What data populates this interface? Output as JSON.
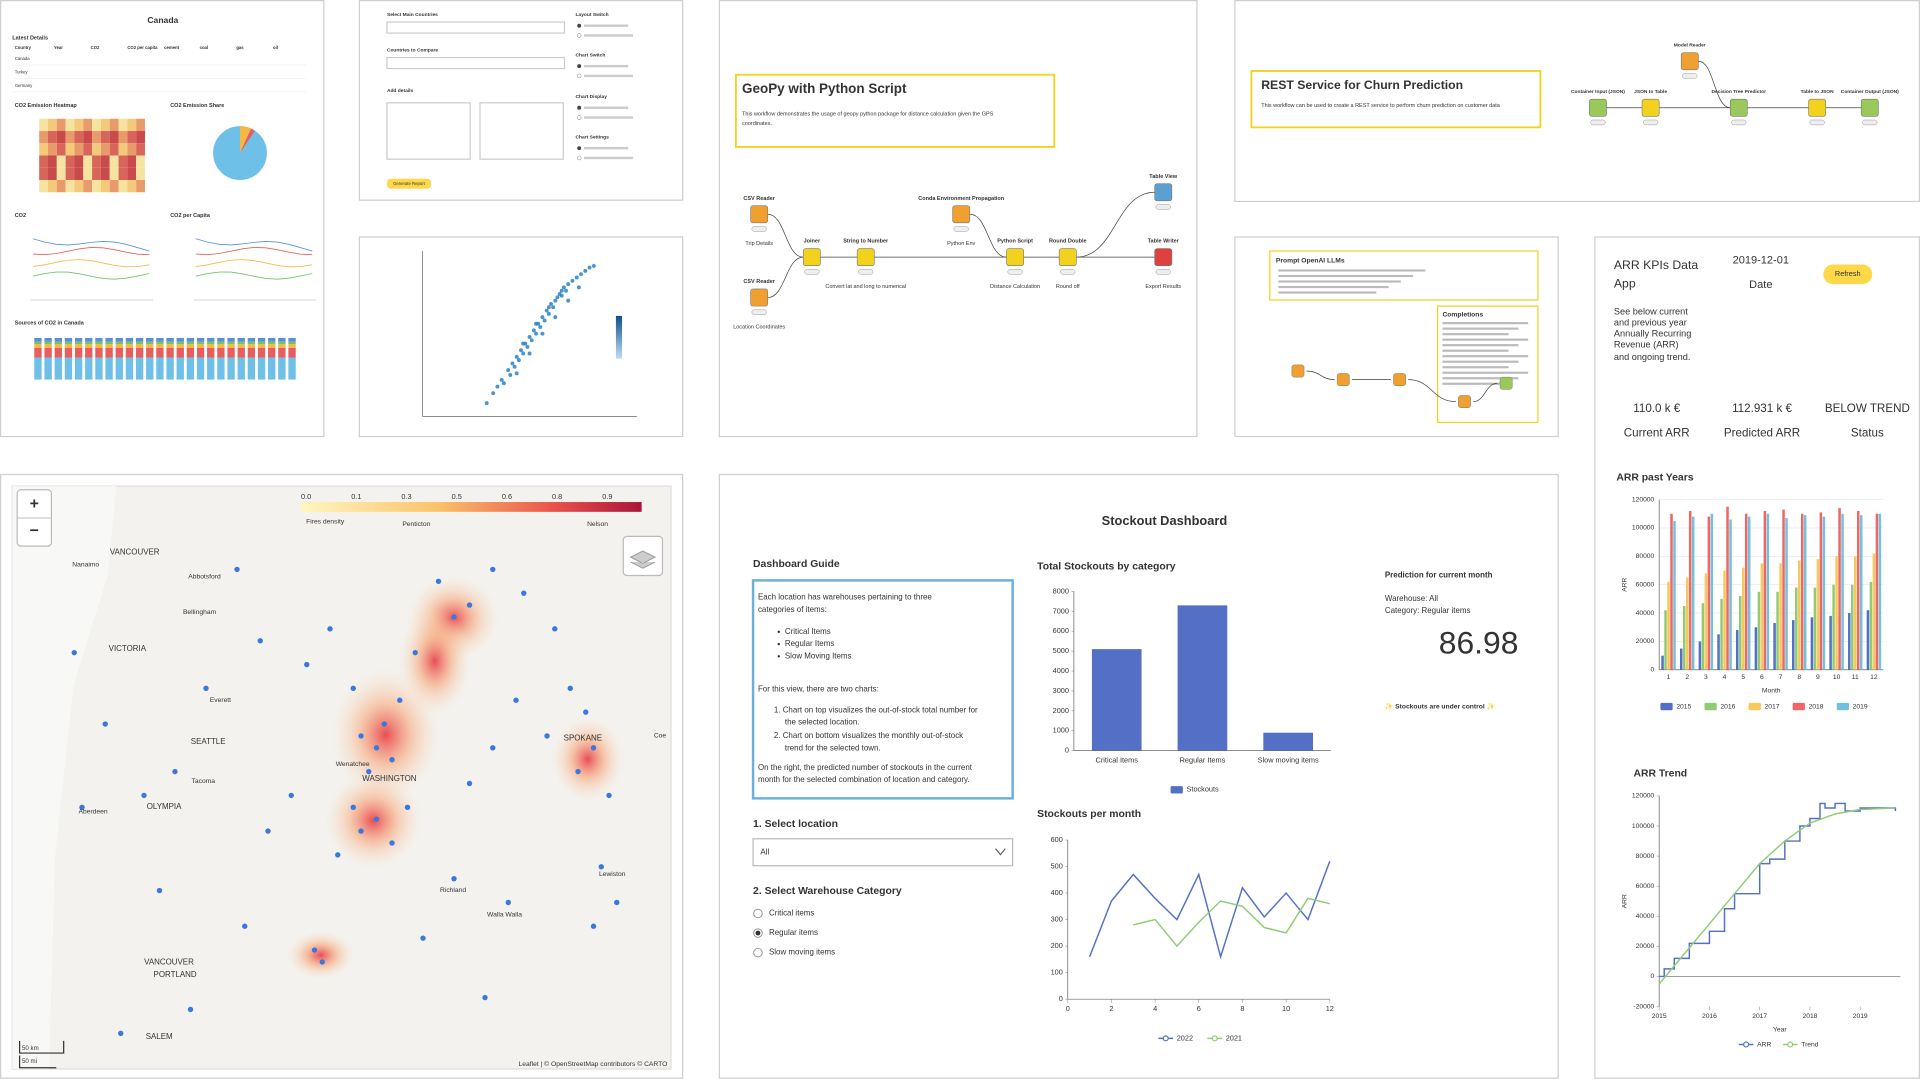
{
  "canada": {
    "title": "Canada",
    "latest_details": "Latest Details",
    "table_headers": [
      "Country",
      "Year",
      "CO2",
      "CO2 per capita",
      "cement",
      "coal",
      "gas",
      "oil"
    ],
    "table_countries": [
      "Canada",
      "Turkey",
      "Germany"
    ],
    "sections": [
      "CO2 Emission Heatmap",
      "CO2 Emission Share",
      "CO2",
      "CO2 per Capita",
      "Sources of CO2 in Canada"
    ]
  },
  "form": {
    "fields": [
      "Select Main Countries",
      "Countries to Compare",
      "Add details"
    ],
    "switches": [
      "Layout Switch",
      "Chart Switch",
      "Chart Display",
      "Chart Settings"
    ],
    "button": "Generate Report"
  },
  "scatter": {
    "type": "scatter",
    "xlim": [
      0,
      100
    ],
    "ylim": [
      0,
      100
    ],
    "series": [
      {
        "color": "#2b83c6",
        "x": [
          30,
          33,
          35,
          37,
          38,
          40,
          41,
          42,
          43,
          44,
          45,
          46,
          47,
          48,
          49,
          50,
          51,
          52,
          53,
          54,
          55,
          56,
          57,
          58,
          59,
          60,
          61,
          62,
          63,
          64,
          65,
          66,
          67,
          68,
          70,
          72,
          74,
          76,
          78,
          80,
          44,
          50,
          56,
          62,
          68,
          73,
          47,
          53,
          59,
          65
        ],
        "values": [
          8,
          14,
          18,
          22,
          20,
          28,
          25,
          32,
          30,
          36,
          34,
          40,
          38,
          44,
          42,
          48,
          46,
          52,
          50,
          56,
          54,
          60,
          58,
          64,
          62,
          68,
          66,
          70,
          72,
          74,
          73,
          78,
          76,
          80,
          82,
          84,
          86,
          88,
          90,
          91,
          26,
          38,
          50,
          60,
          70,
          78,
          44,
          56,
          66,
          76
        ]
      }
    ]
  },
  "geopy": {
    "title": "GeoPy with Python Script",
    "description": [
      "This workflow demonstrates the usage of geopy python package for distance calculation given the GPS",
      "coordinates."
    ],
    "nodes": [
      {
        "name": "CSV Reader",
        "caption": "Trip Details"
      },
      {
        "name": "CSV Reader",
        "caption": "Location Coordinates"
      },
      {
        "name": "Joiner"
      },
      {
        "name": "String to Number",
        "caption": "Convert lat and long to numerical"
      },
      {
        "name": "Conda Environment Propagation",
        "caption": "Python Env"
      },
      {
        "name": "Python Script",
        "caption": "Distance Calculation"
      },
      {
        "name": "Round Double",
        "caption": "Round off"
      },
      {
        "name": "Table View"
      },
      {
        "name": "Table Writer",
        "caption": "Export Results"
      }
    ]
  },
  "rest": {
    "title": "REST Service for Churn Prediction",
    "description": "This workflow can be used to create a REST service to perform churn prediction on customer data",
    "nodes": [
      {
        "name": "Container Input (JSON)"
      },
      {
        "name": "JSON to Table"
      },
      {
        "name": "Model Reader"
      },
      {
        "name": "Decision Tree Predictor"
      },
      {
        "name": "Table to JSON"
      },
      {
        "name": "Container Output (JSON)"
      }
    ]
  },
  "openai": {
    "title": "Prompt OpenAI LLMs",
    "completions": "Completions"
  },
  "arr": {
    "title": [
      "ARR KPIs Data",
      "App"
    ],
    "date_value": "2019-12-01",
    "date_label": "Date",
    "button": "Refresh",
    "description": [
      "See below current",
      "and previous year",
      "Annually Recurring",
      "Revenue (ARR)",
      "and ongoing trend."
    ],
    "kpis": [
      {
        "value": "110.0 k €",
        "label": "Current ARR"
      },
      {
        "value": "112.931 k €",
        "label": "Predicted ARR"
      },
      {
        "value": "BELOW TREND",
        "label": "Status"
      }
    ],
    "bar_chart": {
      "type": "bar",
      "title": "ARR past Years",
      "xlabel": "Month",
      "ylabel": "ARR",
      "grid": true,
      "categories": [
        1,
        2,
        3,
        4,
        5,
        6,
        7,
        8,
        9,
        10,
        11,
        12
      ],
      "ylim": [
        0,
        120000
      ],
      "yticks": [
        0,
        20000,
        40000,
        60000,
        80000,
        100000,
        120000
      ],
      "series": [
        {
          "name": "2015",
          "color": "#5470c6",
          "values": [
            10000,
            15000,
            20000,
            25000,
            28000,
            30000,
            33000,
            35000,
            37000,
            38000,
            40000,
            42000
          ]
        },
        {
          "name": "2016",
          "color": "#91cc75",
          "values": [
            42000,
            45000,
            47000,
            50000,
            52000,
            55000,
            55000,
            58000,
            58000,
            60000,
            60000,
            62000
          ]
        },
        {
          "name": "2017",
          "color": "#fac858",
          "values": [
            62000,
            65000,
            68000,
            70000,
            72000,
            75000,
            75000,
            77000,
            78000,
            80000,
            80000,
            82000
          ]
        },
        {
          "name": "2018",
          "color": "#ee6666",
          "values": [
            110000,
            112000,
            108000,
            115000,
            110000,
            112000,
            113000,
            110000,
            111000,
            114000,
            112000,
            110000
          ]
        },
        {
          "name": "2019",
          "color": "#73c0de",
          "values": [
            105000,
            108000,
            110000,
            106000,
            108000,
            110000,
            107000,
            109000,
            108000,
            110000,
            109000,
            110000
          ]
        }
      ]
    },
    "trend_chart": {
      "type": "line",
      "title": "ARR Trend",
      "xlabel": "Year",
      "ylabel": "ARR",
      "grid": false,
      "xlim": [
        2015,
        2019.8
      ],
      "xticks": [
        2015,
        2016,
        2017,
        2018,
        2019
      ],
      "ylim": [
        -20000,
        120000
      ],
      "yticks": [
        -20000,
        0,
        20000,
        40000,
        60000,
        80000,
        100000,
        120000
      ],
      "series": [
        {
          "name": "ARR",
          "color": "#5470c6",
          "step": true,
          "x": [
            2015.0,
            2015.1,
            2015.3,
            2015.6,
            2016.0,
            2016.3,
            2016.5,
            2016.8,
            2017.0,
            2017.2,
            2017.5,
            2017.8,
            2018.0,
            2018.2,
            2018.3,
            2018.5,
            2018.7,
            2019.0,
            2019.3,
            2019.7
          ],
          "values": [
            0,
            5000,
            12000,
            22000,
            30000,
            45000,
            55000,
            55000,
            75000,
            78000,
            90000,
            100000,
            105000,
            115000,
            112000,
            115000,
            110000,
            112000,
            112000,
            110000
          ]
        },
        {
          "name": "Trend",
          "color": "#91cc75",
          "x": [
            2015.0,
            2015.5,
            2016.0,
            2016.5,
            2017.0,
            2017.5,
            2018.0,
            2018.5,
            2019.0,
            2019.7
          ],
          "values": [
            -5000,
            15000,
            35000,
            55000,
            75000,
            90000,
            102000,
            108000,
            111000,
            112000
          ]
        }
      ]
    }
  },
  "map": {
    "zoom_in": "+",
    "zoom_out": "−",
    "legend_title": "Fires density",
    "legend_labels": [
      "0.0",
      "0.1",
      "0.3",
      "0.5",
      "0.6",
      "0.8",
      "0.9"
    ],
    "cities": [
      "VANCOUVER",
      "Nanaimo",
      "Abbotsford",
      "Penticton",
      "Nelson",
      "VICTORIA",
      "Bellingham",
      "Everett",
      "SEATTLE",
      "Tacoma",
      "OLYMPIA",
      "Aberdeen",
      "WASHINGTON",
      "Wenatchee",
      "SPOKANE",
      "Coe",
      "Richland",
      "Walla Walla",
      "Lewiston",
      "VANCOUVER",
      "PORTLAND",
      "SALEM"
    ],
    "scale": [
      "50 km",
      "50 mi"
    ],
    "attribution": "Leaflet | © OpenStreetMap contributors © CARTO",
    "xlim": [
      -124.8,
      -116.3
    ],
    "ylim": [
      44.7,
      49.6
    ],
    "point_color": "#3a78e0",
    "points": {
      "lon": [
        -120.1,
        -120.3,
        -119.9,
        -120.2,
        -120.0,
        -119.8,
        -120.4,
        -119.6,
        -119.1,
        -118.9,
        -119.3,
        -118.6,
        -118.2,
        -117.8,
        -117.4,
        -117.3,
        -117.5,
        -117.1,
        -117.6,
        -117.9,
        -118.3,
        -120.1,
        -120.3,
        -119.9,
        -120.4,
        -120.6,
        -119.7,
        -121.2,
        -121.5,
        -121.6,
        -121.9,
        -122.3,
        -122.7,
        -123.1,
        -123.6,
        -123.9,
        -124.0,
        -122.9,
        -121.8,
        -120.9,
        -120.8,
        -119.1,
        -118.4,
        -117.2,
        -117.0,
        -117.3,
        -118.7,
        -122.5,
        -123.4,
        -119.5,
        -121.0,
        -120.7,
        -118.9,
        -118.6
      ],
      "lat": [
        47.4,
        47.5,
        47.3,
        47.2,
        47.6,
        47.8,
        47.9,
        48.2,
        48.5,
        48.6,
        48.8,
        48.9,
        48.7,
        48.4,
        47.7,
        47.4,
        47.2,
        47.0,
        47.9,
        47.5,
        47.8,
        46.8,
        46.7,
        46.6,
        46.9,
        46.5,
        46.9,
        47.0,
        46.7,
        48.3,
        48.9,
        47.9,
        47.2,
        47.0,
        47.6,
        46.9,
        48.2,
        46.2,
        45.9,
        45.7,
        45.6,
        46.3,
        46.1,
        46.4,
        46.1,
        45.9,
        45.3,
        45.2,
        45.0,
        45.8,
        48.1,
        48.4,
        47.1,
        47.4
      ]
    }
  },
  "stockout": {
    "title": "Stockout Dashboard",
    "guide_title": "Dashboard Guide",
    "guide": {
      "intro": [
        "Each location has warehouses pertaining to three",
        "categories of items:"
      ],
      "items": [
        "Critical Items",
        "Regular Items",
        "Slow Moving Items"
      ],
      "charts_intro": "For this view, there are two charts:",
      "charts": [
        "1. Chart on top visualizes the out-of-stock total number for",
        "the selected location.",
        "2. Chart on bottom visualizes the monthly out-of-stock",
        "trend for the selected town."
      ],
      "outro": [
        "On the right, the predicted number of stockouts in the current",
        "month for the selected combination of location and category."
      ]
    },
    "location_label": "1. Select location",
    "location_value": "All",
    "category_label": "2. Select Warehouse Category",
    "category_options": [
      "Critical items",
      "Regular items",
      "Slow moving items"
    ],
    "selected_option": 1,
    "prediction": {
      "title": "Prediction for current month",
      "warehouse": "Warehouse: All",
      "category": "Category: Regular items",
      "value": 86.98,
      "status": "✨ Stockouts are under control ✨"
    },
    "bar_chart": {
      "type": "bar",
      "title": "Total Stockouts by category",
      "grid": false,
      "categories": [
        "Critical Items",
        "Regular Items",
        "Slow moving items"
      ],
      "ylim": [
        0,
        8000
      ],
      "yticks": [
        0,
        1000,
        2000,
        3000,
        4000,
        5000,
        6000,
        7000,
        8000
      ],
      "series": [
        {
          "name": "Stockouts",
          "color": "#5470c6",
          "values": [
            5100,
            7300,
            900
          ]
        }
      ]
    },
    "line_chart": {
      "type": "line",
      "title": "Stockouts per month",
      "grid": false,
      "x": [
        1,
        2,
        3,
        4,
        5,
        6,
        7,
        8,
        9,
        10,
        11,
        12
      ],
      "xlim": [
        0,
        12
      ],
      "xticks": [
        0,
        2,
        4,
        6,
        8,
        10,
        12
      ],
      "ylim": [
        0,
        600
      ],
      "yticks": [
        0,
        100,
        200,
        300,
        400,
        500,
        600
      ],
      "series": [
        {
          "name": "2022",
          "color": "#5470c6",
          "values": [
            160,
            370,
            470,
            380,
            300,
            470,
            160,
            420,
            310,
            400,
            300,
            520
          ]
        },
        {
          "name": "2021",
          "color": "#91cc75",
          "values": [
            null,
            null,
            280,
            300,
            200,
            290,
            370,
            350,
            270,
            250,
            380,
            360
          ]
        }
      ]
    }
  }
}
